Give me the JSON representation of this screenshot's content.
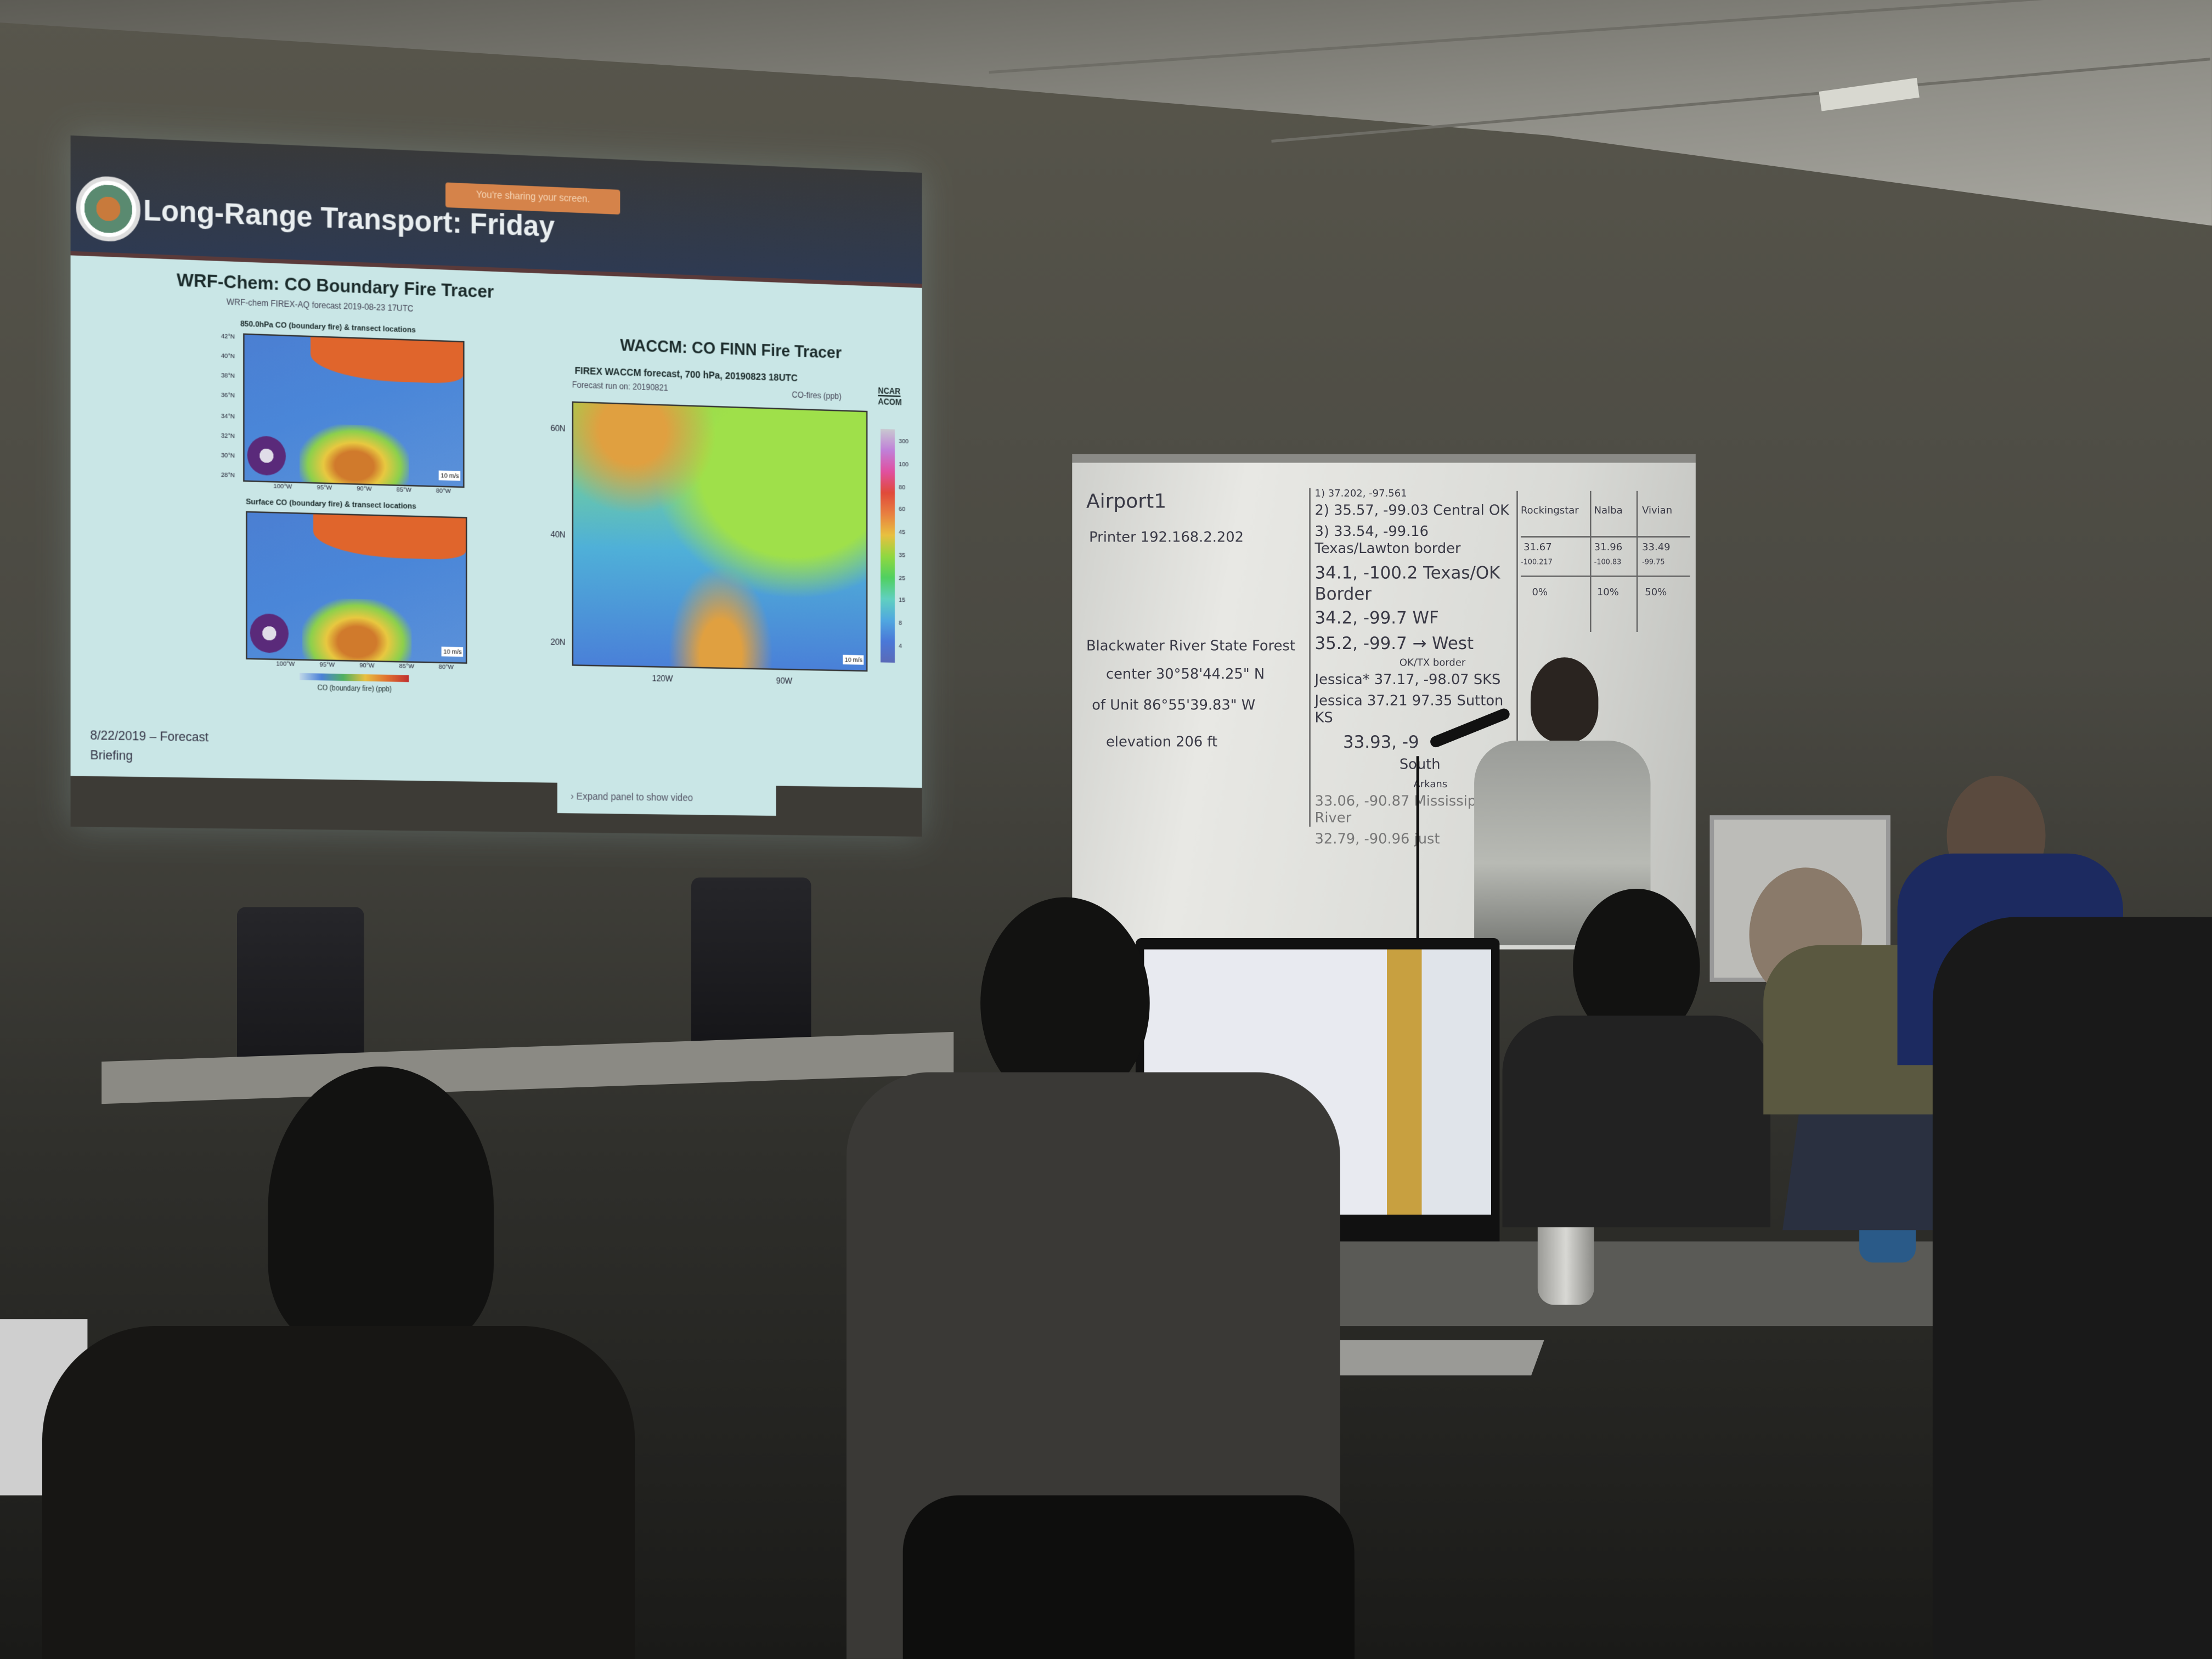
{
  "slide": {
    "sharing_banner": "You're sharing your screen.",
    "title": "Long-Range Transport: Friday",
    "left_panel": {
      "heading": "WRF-Chem: CO Boundary Fire Tracer",
      "subtitle": "WRF-chem FIREX-AQ forecast 2019-08-23 17UTC",
      "map1_title": "850.0hPa CO (boundary fire) & transect locations",
      "map2_title": "Surface CO (boundary fire) & transect locations",
      "lat_ticks": [
        "42°N",
        "40°N",
        "38°N",
        "36°N",
        "34°N",
        "32°N",
        "30°N",
        "28°N"
      ],
      "lon_ticks": [
        "100°W",
        "95°W",
        "90°W",
        "85°W",
        "80°W"
      ],
      "wind_scale": "10 m/s",
      "colorbar_label": "CO (boundary fire) (ppb)"
    },
    "right_panel": {
      "heading": "WACCM: CO FINN Fire Tracer",
      "map_title": "FIREX WACCM forecast, 700 hPa, 20190823 18UTC",
      "run_label": "Forecast run on: 20190821",
      "units": "CO-fires (ppb)",
      "org_top": "NCAR",
      "org_bottom": "ACOM",
      "colorbar_ticks": [
        "300",
        "100",
        "80",
        "60",
        "45",
        "35",
        "25",
        "15",
        "8",
        "4"
      ],
      "lat_ticks": [
        "60N",
        "40N",
        "20N"
      ],
      "lon_ticks": [
        "120W",
        "90W"
      ],
      "wind_scale": "10 m/s"
    },
    "footer_date": "8/22/2019 – Forecast",
    "footer_sub": "Briefing",
    "expand_chevron": "›",
    "expand_label": "Expand panel to show video"
  },
  "whiteboard": {
    "left": [
      "Airport1",
      "Printer 192.168.2.202",
      "Blackwater River State Forest",
      "center  30°58'44.25\" N",
      "of Unit  86°55'39.83\" W",
      "elevation 206 ft"
    ],
    "middle": [
      "1) 37.202, -97.561",
      "2) 35.57, -99.03  Central OK",
      "3) 33.54, -99.16  Texas/Lawton border",
      "34.1, -100.2  Texas/OK Border",
      "34.2, -99.7  WF",
      "35.2, -99.7 → West",
      "OK/TX border",
      "Jessica* 37.17, -98.07  SKS",
      "Jessica 37.21  97.35 Sutton KS",
      "33.93, -9",
      "South",
      "Arkans",
      "33.06, -90.87 Mississippi River",
      "32.79, -90.96 just"
    ],
    "table_headers": [
      "Rockingstar",
      "Nalba",
      "Vivian"
    ],
    "table_row1": [
      "31.67",
      "31.96",
      "33.49"
    ],
    "table_row2": [
      "-100.217",
      "-100.83",
      "-99.75"
    ],
    "table_row3": [
      "0%",
      "10%",
      "50%"
    ]
  }
}
